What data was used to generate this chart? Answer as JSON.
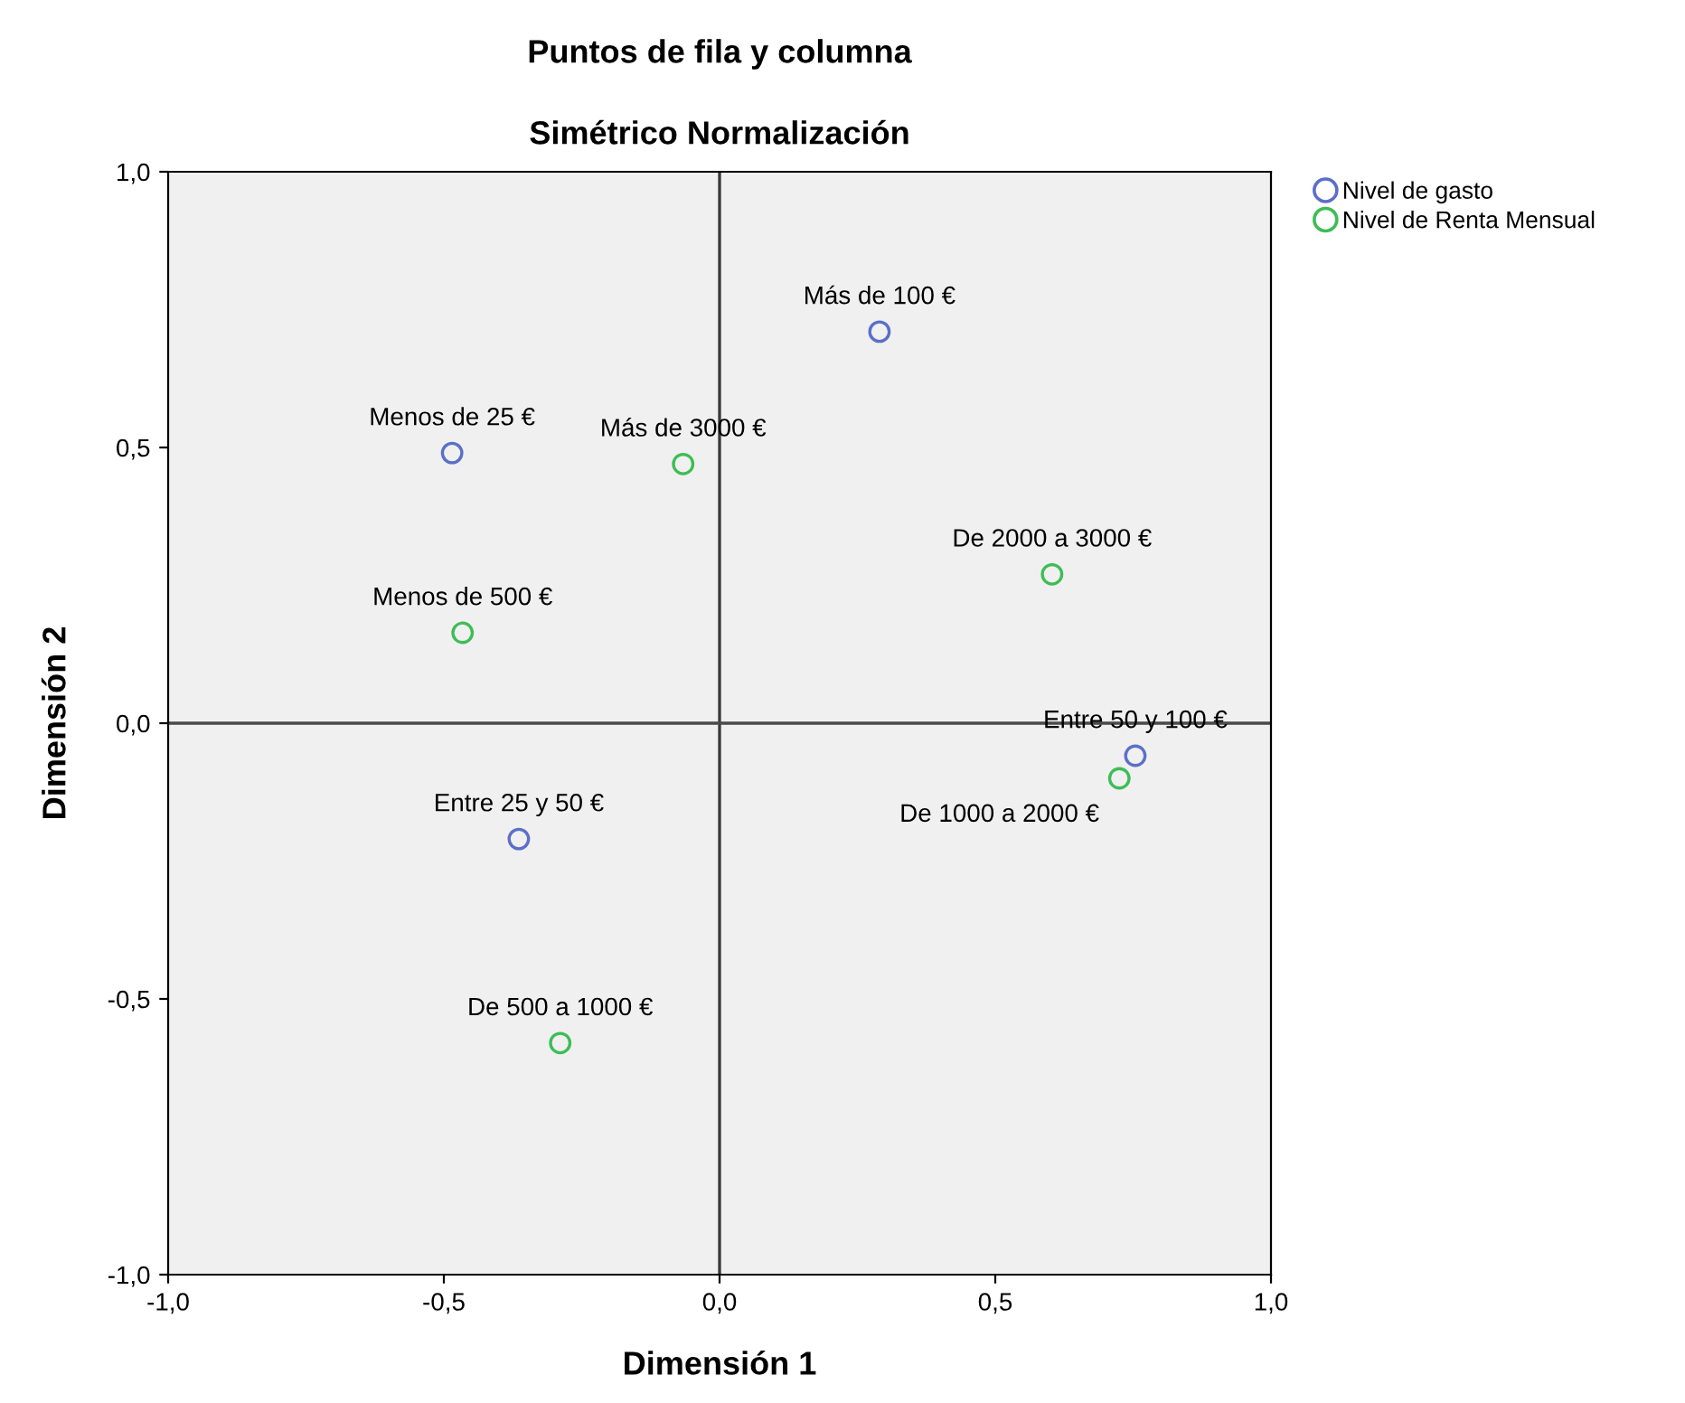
{
  "chart_data": {
    "type": "scatter",
    "title": "Puntos de fila y columna",
    "subtitle": "Simétrico Normalización",
    "xlabel": "Dimensión 1",
    "ylabel": "Dimensión 2",
    "series": [
      {
        "name": "Nivel de gasto",
        "color": "#5b6fc9",
        "x": [
          0.29,
          -0.485,
          0.754,
          -0.364
        ],
        "values": [
          0.71,
          0.49,
          -0.059,
          -0.21
        ]
      },
      {
        "name": "Nivel de Renta Mensual",
        "color": "#3dbd55",
        "x": [
          -0.066,
          0.603,
          -0.466,
          0.725,
          -0.289
        ],
        "values": [
          0.47,
          0.27,
          0.164,
          -0.1,
          -0.58
        ]
      }
    ],
    "annotations": [
      {
        "text": "Más de 100 €",
        "x": 0.29,
        "y": 0.71
      },
      {
        "text": "Menos de 25 €",
        "x": -0.485,
        "y": 0.49
      },
      {
        "text": "Entre 50 y 100 €",
        "x": 0.754,
        "y": -0.059
      },
      {
        "text": "Entre 25 y 50 €",
        "x": -0.364,
        "y": -0.21
      },
      {
        "text": "Más de 3000 €",
        "x": -0.066,
        "y": 0.47
      },
      {
        "text": "De 2000 a 3000 €",
        "x": 0.603,
        "y": 0.27
      },
      {
        "text": "Menos de 500 €",
        "x": -0.466,
        "y": 0.164
      },
      {
        "text": "De 1000 a 2000 €",
        "x": 0.725,
        "y": -0.1
      },
      {
        "text": "De 500 a 1000 €",
        "x": -0.289,
        "y": -0.58
      }
    ],
    "xlim": [
      -1.0,
      1.0
    ],
    "ylim": [
      -1.0,
      1.0
    ],
    "xticks": [
      {
        "value": -1.0,
        "label": "-1,0"
      },
      {
        "value": -0.5,
        "label": "-0,5"
      },
      {
        "value": 0.0,
        "label": "0,0"
      },
      {
        "value": 0.5,
        "label": "0,5"
      },
      {
        "value": 1.0,
        "label": "1,0"
      }
    ],
    "yticks": [
      {
        "value": -1.0,
        "label": "-1,0"
      },
      {
        "value": -0.5,
        "label": "-0,5"
      },
      {
        "value": 0.0,
        "label": "0,0"
      },
      {
        "value": 0.5,
        "label": "0,5"
      },
      {
        "value": 1.0,
        "label": "1,0"
      }
    ],
    "ref_lines": [
      {
        "axis": "x",
        "value": 0.0,
        "color": "#3a3a3a"
      },
      {
        "axis": "y",
        "value": 0.0,
        "color": "#4a4a4a"
      }
    ],
    "grid": false,
    "legend": "top right",
    "marker": "circle"
  }
}
